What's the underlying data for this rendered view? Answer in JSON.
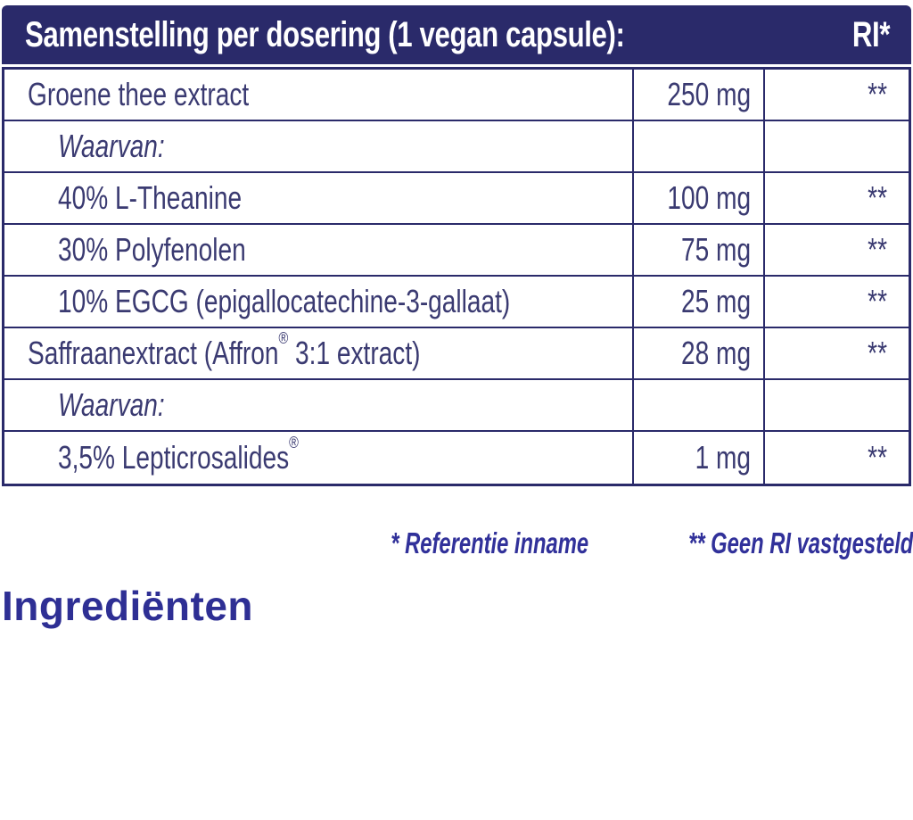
{
  "colors": {
    "header_bg": "#2a2a6a",
    "border": "#2a2a6a",
    "table_text": "#3a3a71",
    "header_text": "#ffffff",
    "accent_blue": "#31319a",
    "heading_blue": "#2e2f94",
    "background": "#ffffff"
  },
  "table": {
    "header": {
      "title": "Samenstelling per dosering (1 vegan capsule):",
      "ri_label": "RI*"
    },
    "rows": [
      {
        "name": "Groene thee extract",
        "amount": "250 mg",
        "ri": "**",
        "indent": 0,
        "italic": false
      },
      {
        "name": "Waarvan:",
        "amount": "",
        "ri": "",
        "indent": 1,
        "italic": true
      },
      {
        "name": "40% L-Theanine",
        "amount": "100 mg",
        "ri": "**",
        "indent": 1,
        "italic": false
      },
      {
        "name": "30% Polyfenolen",
        "amount": "75 mg",
        "ri": "**",
        "indent": 1,
        "italic": false
      },
      {
        "name": "10% EGCG (epigallocatechine-3-gallaat)",
        "amount": "25 mg",
        "ri": "**",
        "indent": 1,
        "italic": false
      },
      {
        "name": "Saffraanextract (Affron® 3:1 extract)",
        "amount": "28 mg",
        "ri": "**",
        "indent": 0,
        "italic": false
      },
      {
        "name": "Waarvan:",
        "amount": "",
        "ri": "",
        "indent": 1,
        "italic": true
      },
      {
        "name": "3,5% Lepticrosalides®",
        "amount": "1 mg",
        "ri": "**",
        "indent": 1,
        "italic": false
      }
    ]
  },
  "footnote": {
    "reference_intake": "* Referentie inname",
    "no_ri_established": "** Geen RI vastgesteld"
  },
  "ingredients_heading": "Ingrediënten"
}
